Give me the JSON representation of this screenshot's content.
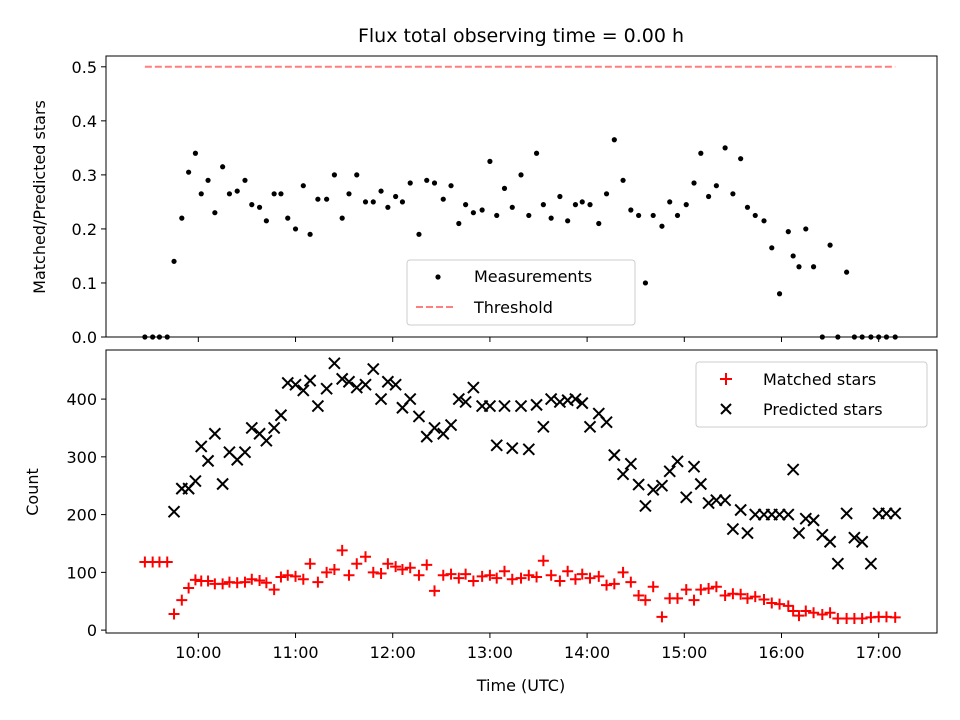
{
  "chart_data": [
    {
      "type": "scatter",
      "title": "Flux total observing time = 0.00 h",
      "xlabel": "",
      "ylabel": "Matched/Predicted stars",
      "xlim": [
        9.05,
        17.6
      ],
      "ylim": [
        0,
        0.52
      ],
      "yticks": [
        0.0,
        0.1,
        0.2,
        0.3,
        0.4,
        0.5
      ],
      "yticklabels": [
        "0.0",
        "0.1",
        "0.2",
        "0.3",
        "0.4",
        "0.5"
      ],
      "xticks": [
        10,
        11,
        12,
        13,
        14,
        15,
        16,
        17
      ],
      "grid": false,
      "legend_position": "lower-center",
      "threshold": {
        "name": "Threshold",
        "value": 0.5,
        "x_range": [
          9.45,
          17.17
        ],
        "color": "#ff7f7f"
      },
      "series": [
        {
          "name": "Measurements",
          "color": "#000000",
          "x": [
            9.45,
            9.53,
            9.6,
            9.68,
            9.75,
            9.83,
            9.9,
            9.97,
            10.03,
            10.1,
            10.17,
            10.25,
            10.32,
            10.4,
            10.48,
            10.55,
            10.63,
            10.7,
            10.78,
            10.85,
            10.92,
            11.0,
            11.08,
            11.15,
            11.23,
            11.32,
            11.4,
            11.48,
            11.55,
            11.63,
            11.72,
            11.8,
            11.88,
            11.95,
            12.03,
            12.1,
            12.18,
            12.27,
            12.35,
            12.43,
            12.52,
            12.6,
            12.68,
            12.75,
            12.83,
            12.92,
            13.0,
            13.07,
            13.15,
            13.23,
            13.32,
            13.4,
            13.48,
            13.55,
            13.63,
            13.72,
            13.8,
            13.88,
            13.95,
            14.03,
            14.12,
            14.2,
            14.28,
            14.37,
            14.45,
            14.53,
            14.6,
            14.68,
            14.77,
            14.85,
            14.93,
            15.02,
            15.1,
            15.17,
            15.25,
            15.33,
            15.42,
            15.5,
            15.58,
            15.65,
            15.73,
            15.82,
            15.9,
            15.98,
            16.07,
            16.12,
            16.18,
            16.25,
            16.33,
            16.42,
            16.5,
            16.58,
            16.67,
            16.75,
            16.83,
            16.92,
            17.0,
            17.08,
            17.17
          ],
          "y": [
            0.0,
            0.0,
            0.0,
            0.0,
            0.14,
            0.22,
            0.305,
            0.34,
            0.265,
            0.29,
            0.23,
            0.315,
            0.265,
            0.27,
            0.29,
            0.245,
            0.24,
            0.215,
            0.265,
            0.265,
            0.22,
            0.2,
            0.28,
            0.19,
            0.255,
            0.255,
            0.3,
            0.22,
            0.265,
            0.3,
            0.25,
            0.25,
            0.27,
            0.24,
            0.26,
            0.25,
            0.285,
            0.19,
            0.29,
            0.285,
            0.255,
            0.28,
            0.21,
            0.245,
            0.23,
            0.235,
            0.325,
            0.225,
            0.275,
            0.24,
            0.3,
            0.225,
            0.34,
            0.245,
            0.22,
            0.26,
            0.215,
            0.245,
            0.25,
            0.245,
            0.21,
            0.265,
            0.365,
            0.29,
            0.235,
            0.225,
            0.1,
            0.225,
            0.205,
            0.25,
            0.225,
            0.245,
            0.285,
            0.34,
            0.26,
            0.28,
            0.35,
            0.265,
            0.33,
            0.24,
            0.225,
            0.215,
            0.165,
            0.08,
            0.195,
            0.15,
            0.13,
            0.2,
            0.13,
            0.0,
            0.17,
            0.0,
            0.12,
            0.0,
            0.0,
            0.0,
            0.0,
            0.0,
            0.0
          ]
        }
      ]
    },
    {
      "type": "scatter",
      "title": "",
      "xlabel": "Time (UTC)",
      "ylabel": "Count",
      "xlim": [
        9.05,
        17.6
      ],
      "ylim": [
        -5,
        485
      ],
      "yticks": [
        0,
        100,
        200,
        300,
        400
      ],
      "yticklabels": [
        "0",
        "100",
        "200",
        "300",
        "400"
      ],
      "xticks": [
        10,
        11,
        12,
        13,
        14,
        15,
        16,
        17
      ],
      "xticklabels": [
        "10:00",
        "11:00",
        "12:00",
        "13:00",
        "14:00",
        "15:00",
        "16:00",
        "17:00"
      ],
      "grid": false,
      "legend_position": "top-right",
      "series": [
        {
          "name": "Matched stars",
          "marker": "+",
          "color": "#ff0000",
          "x": [
            9.45,
            9.53,
            9.6,
            9.68,
            9.75,
            9.83,
            9.9,
            9.97,
            10.03,
            10.1,
            10.17,
            10.25,
            10.32,
            10.4,
            10.48,
            10.55,
            10.63,
            10.7,
            10.78,
            10.85,
            10.92,
            11.0,
            11.08,
            11.15,
            11.23,
            11.32,
            11.4,
            11.48,
            11.55,
            11.63,
            11.72,
            11.8,
            11.88,
            11.95,
            12.03,
            12.1,
            12.18,
            12.27,
            12.35,
            12.43,
            12.52,
            12.6,
            12.68,
            12.75,
            12.83,
            12.92,
            13.0,
            13.07,
            13.15,
            13.23,
            13.32,
            13.4,
            13.48,
            13.55,
            13.63,
            13.72,
            13.8,
            13.88,
            13.95,
            14.03,
            14.12,
            14.2,
            14.28,
            14.37,
            14.45,
            14.53,
            14.6,
            14.68,
            14.77,
            14.85,
            14.93,
            15.02,
            15.1,
            15.17,
            15.25,
            15.33,
            15.42,
            15.5,
            15.58,
            15.65,
            15.73,
            15.82,
            15.9,
            15.98,
            16.07,
            16.12,
            16.18,
            16.25,
            16.33,
            16.42,
            16.5,
            16.58,
            16.67,
            16.75,
            16.83,
            16.92,
            17.0,
            17.08,
            17.17
          ],
          "y": [
            118,
            118,
            118,
            118,
            28,
            52,
            73,
            87,
            85,
            85,
            80,
            80,
            83,
            82,
            83,
            88,
            86,
            82,
            70,
            92,
            95,
            93,
            88,
            115,
            83,
            100,
            105,
            138,
            95,
            115,
            127,
            100,
            98,
            115,
            110,
            105,
            108,
            95,
            113,
            68,
            95,
            97,
            90,
            97,
            85,
            93,
            95,
            90,
            102,
            88,
            90,
            95,
            92,
            120,
            95,
            85,
            102,
            88,
            97,
            90,
            93,
            78,
            80,
            100,
            83,
            60,
            52,
            75,
            23,
            55,
            55,
            70,
            52,
            70,
            72,
            75,
            60,
            63,
            62,
            55,
            58,
            53,
            47,
            45,
            42,
            33,
            25,
            33,
            30,
            27,
            30,
            20,
            20,
            20,
            20,
            22,
            23,
            23,
            22
          ]
        },
        {
          "name": "Predicted stars",
          "marker": "x",
          "color": "#000000",
          "x": [
            9.75,
            9.83,
            9.9,
            9.97,
            10.03,
            10.1,
            10.17,
            10.25,
            10.32,
            10.4,
            10.48,
            10.55,
            10.63,
            10.7,
            10.78,
            10.85,
            10.92,
            11.0,
            11.08,
            11.15,
            11.23,
            11.32,
            11.4,
            11.48,
            11.55,
            11.63,
            11.72,
            11.8,
            11.88,
            11.95,
            12.03,
            12.1,
            12.18,
            12.27,
            12.35,
            12.43,
            12.52,
            12.6,
            12.68,
            12.75,
            12.83,
            12.92,
            13.0,
            13.07,
            13.15,
            13.23,
            13.32,
            13.4,
            13.48,
            13.55,
            13.63,
            13.72,
            13.8,
            13.88,
            13.95,
            14.03,
            14.12,
            14.2,
            14.28,
            14.37,
            14.45,
            14.53,
            14.6,
            14.68,
            14.77,
            14.85,
            14.93,
            15.02,
            15.1,
            15.17,
            15.25,
            15.33,
            15.42,
            15.5,
            15.58,
            15.65,
            15.73,
            15.82,
            15.9,
            15.98,
            16.07,
            16.12,
            16.18,
            16.25,
            16.33,
            16.42,
            16.5,
            16.58,
            16.67,
            16.75,
            16.83,
            16.92,
            17.0,
            17.08,
            17.17
          ],
          "y": [
            205,
            245,
            245,
            258,
            318,
            293,
            340,
            253,
            308,
            295,
            308,
            350,
            340,
            328,
            350,
            372,
            428,
            425,
            415,
            432,
            388,
            418,
            462,
            435,
            430,
            420,
            425,
            452,
            400,
            430,
            425,
            385,
            400,
            370,
            335,
            350,
            340,
            355,
            400,
            395,
            420,
            388,
            388,
            320,
            388,
            315,
            388,
            313,
            390,
            352,
            400,
            395,
            398,
            400,
            393,
            352,
            375,
            360,
            303,
            270,
            288,
            252,
            215,
            243,
            250,
            275,
            292,
            230,
            283,
            253,
            220,
            225,
            225,
            175,
            208,
            168,
            200,
            200,
            200,
            200,
            200,
            278,
            168,
            193,
            190,
            165,
            153,
            115,
            202,
            160,
            153,
            115,
            202,
            202,
            202
          ]
        }
      ]
    }
  ]
}
